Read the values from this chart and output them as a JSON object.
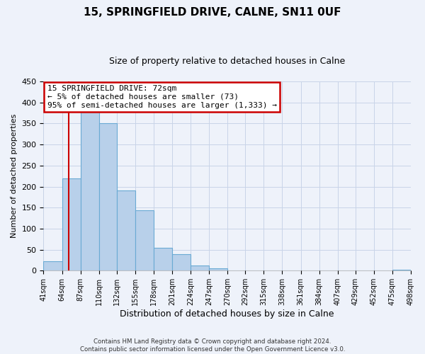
{
  "title": "15, SPRINGFIELD DRIVE, CALNE, SN11 0UF",
  "subtitle": "Size of property relative to detached houses in Calne",
  "xlabel": "Distribution of detached houses by size in Calne",
  "ylabel": "Number of detached properties",
  "bar_values": [
    23,
    220,
    378,
    350,
    190,
    143,
    55,
    40,
    13,
    6,
    0,
    0,
    0,
    0,
    0,
    0,
    0,
    0,
    0,
    2
  ],
  "bin_edges": [
    41,
    64,
    87,
    110,
    132,
    155,
    178,
    201,
    224,
    247,
    270,
    292,
    315,
    338,
    361,
    384,
    407,
    429,
    452,
    475,
    498
  ],
  "tick_labels": [
    "41sqm",
    "64sqm",
    "87sqm",
    "110sqm",
    "132sqm",
    "155sqm",
    "178sqm",
    "201sqm",
    "224sqm",
    "247sqm",
    "270sqm",
    "292sqm",
    "315sqm",
    "338sqm",
    "361sqm",
    "384sqm",
    "407sqm",
    "429sqm",
    "452sqm",
    "475sqm",
    "498sqm"
  ],
  "bar_color": "#b8d0ea",
  "bar_edge_color": "#6aaad4",
  "vline_x": 72,
  "vline_color": "#cc0000",
  "ylim": [
    0,
    450
  ],
  "yticks": [
    0,
    50,
    100,
    150,
    200,
    250,
    300,
    350,
    400,
    450
  ],
  "annotation_line1": "15 SPRINGFIELD DRIVE: 72sqm",
  "annotation_line2": "← 5% of detached houses are smaller (73)",
  "annotation_line3": "95% of semi-detached houses are larger (1,333) →",
  "footnote": "Contains HM Land Registry data © Crown copyright and database right 2024.\nContains public sector information licensed under the Open Government Licence v3.0.",
  "grid_color": "#c8d4e8",
  "background_color": "#eef2fa",
  "title_fontsize": 11,
  "subtitle_fontsize": 9,
  "ylabel_fontsize": 8,
  "xlabel_fontsize": 9
}
